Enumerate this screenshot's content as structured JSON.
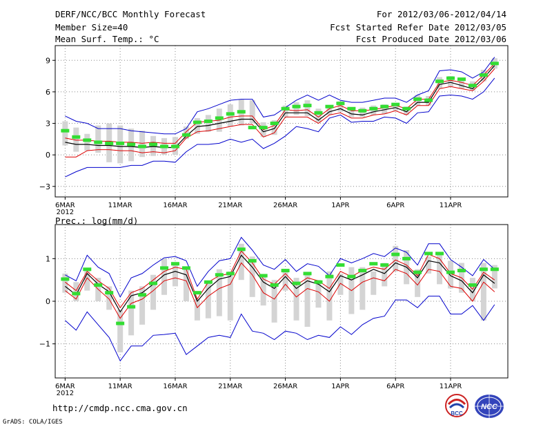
{
  "header": {
    "title": "DERF/NCC/BCC Monthly Forecast",
    "member_size": "Member Size=40",
    "variable": "Mean Surf. Temp.: °C",
    "period": "For 2012/03/06-2012/04/14",
    "started": "Fcst Started Refer Date 2012/03/05",
    "produced": "Fcst Produced Date 2012/03/06"
  },
  "footer": {
    "url": "http://cmdp.ncc.cma.gov.cn",
    "credit": "GrADS: COLA/IGES",
    "logo_left_text": "BCC",
    "logo_right_text": "NCC"
  },
  "colors": {
    "envelope": "#0000cc",
    "quartile": "#dd0000",
    "mean": "#000000",
    "observed": "#33dd33",
    "box": "#d4d4d4",
    "grid": "#888888"
  },
  "chart_data": [
    {
      "type": "line",
      "title": "Mean Surf. Temp.: °C",
      "x_tick_labels": [
        "6MAR\n2012",
        "11MAR",
        "16MAR",
        "21MAR",
        "26MAR",
        "1APR",
        "6APR",
        "11APR"
      ],
      "x_tick_days": [
        1,
        6,
        11,
        16,
        21,
        26,
        31,
        36
      ],
      "y_ticks": [
        -3,
        0,
        3,
        6,
        9
      ],
      "ylim": [
        -4.0,
        10.4
      ],
      "days": [
        1,
        2,
        3,
        4,
        5,
        6,
        7,
        8,
        9,
        10,
        11,
        12,
        13,
        14,
        15,
        16,
        17,
        18,
        19,
        20,
        21,
        22,
        23,
        24,
        25,
        26,
        27,
        28,
        29,
        30,
        31,
        32,
        33,
        34,
        35,
        36,
        37,
        38,
        39,
        40
      ],
      "series": [
        {
          "name": "max",
          "values": [
            3.7,
            3.2,
            3.0,
            2.5,
            2.5,
            2.5,
            2.3,
            2.2,
            2.1,
            2.0,
            2.0,
            2.5,
            4.1,
            4.4,
            4.8,
            5.2,
            5.3,
            5.3,
            3.6,
            3.8,
            4.5,
            5.2,
            5.7,
            5.2,
            5.7,
            5.2,
            5.0,
            5.0,
            5.2,
            5.4,
            5.4,
            5.0,
            5.7,
            6.1,
            8.0,
            8.1,
            7.9,
            7.3,
            7.9,
            9.3
          ]
        },
        {
          "name": "upper_quartile",
          "values": [
            1.6,
            1.4,
            1.4,
            1.3,
            1.3,
            1.2,
            1.2,
            1.1,
            1.2,
            1.1,
            1.1,
            2.2,
            3.1,
            3.2,
            3.3,
            3.6,
            3.7,
            3.7,
            2.4,
            2.8,
            4.3,
            4.2,
            4.3,
            3.6,
            4.4,
            4.7,
            4.2,
            4.2,
            4.3,
            4.5,
            4.7,
            4.4,
            5.3,
            5.3,
            6.9,
            7.1,
            6.9,
            6.6,
            7.6,
            8.7
          ]
        },
        {
          "name": "mean",
          "values": [
            1.2,
            1.0,
            1.0,
            0.9,
            0.9,
            0.8,
            0.8,
            0.7,
            0.8,
            0.7,
            0.7,
            1.8,
            2.7,
            2.8,
            3.0,
            3.2,
            3.4,
            3.4,
            2.2,
            2.5,
            4.0,
            4.0,
            4.0,
            3.3,
            4.1,
            4.4,
            3.9,
            3.8,
            4.1,
            4.3,
            4.5,
            4.1,
            5.0,
            5.0,
            6.7,
            6.9,
            6.6,
            6.3,
            7.3,
            8.5
          ]
        },
        {
          "name": "lower_quartile",
          "values": [
            -0.2,
            -0.2,
            0.4,
            0.5,
            0.5,
            0.4,
            0.4,
            0.2,
            0.3,
            0.2,
            0.4,
            1.6,
            2.2,
            2.3,
            2.5,
            2.7,
            2.9,
            2.9,
            1.7,
            2.1,
            3.6,
            3.6,
            3.6,
            3.0,
            3.8,
            4.0,
            3.5,
            3.5,
            3.8,
            3.9,
            4.2,
            3.8,
            4.7,
            4.7,
            6.3,
            6.5,
            6.3,
            6.1,
            7.0,
            8.2
          ]
        },
        {
          "name": "min",
          "values": [
            -2.1,
            -1.6,
            -1.2,
            -1.2,
            -1.2,
            -1.2,
            -1.0,
            -1.0,
            -0.6,
            -0.6,
            -0.7,
            0.3,
            1.0,
            1.0,
            1.1,
            1.5,
            1.2,
            1.5,
            0.6,
            1.1,
            1.8,
            2.7,
            2.5,
            2.2,
            3.5,
            3.8,
            3.1,
            3.2,
            3.2,
            3.6,
            3.5,
            3.0,
            4.0,
            4.1,
            5.6,
            5.7,
            5.6,
            5.3,
            6.0,
            7.3
          ]
        }
      ],
      "boxes": [
        [
          0.9,
          3.2
        ],
        [
          0.3,
          2.6
        ],
        [
          0.4,
          2.0
        ],
        [
          0.2,
          2.8
        ],
        [
          -0.7,
          3.0
        ],
        [
          -0.8,
          2.8
        ],
        [
          -0.6,
          2.5
        ],
        [
          -0.2,
          2.3
        ],
        [
          -0.1,
          1.8
        ],
        [
          0.0,
          1.6
        ],
        [
          0.0,
          1.7
        ],
        [
          1.5,
          2.7
        ],
        [
          2.0,
          3.5
        ],
        [
          2.2,
          3.8
        ],
        [
          2.2,
          4.4
        ],
        [
          2.7,
          4.8
        ],
        [
          2.8,
          5.3
        ],
        [
          3.0,
          5.2
        ],
        [
          1.7,
          3.1
        ],
        [
          1.9,
          3.3
        ],
        [
          3.6,
          4.7
        ],
        [
          3.8,
          5.0
        ],
        [
          3.7,
          5.2
        ],
        [
          3.1,
          4.4
        ],
        [
          3.8,
          4.7
        ],
        [
          4.1,
          5.1
        ],
        [
          3.6,
          4.5
        ],
        [
          3.6,
          4.5
        ],
        [
          3.8,
          4.7
        ],
        [
          3.9,
          4.8
        ],
        [
          4.2,
          4.9
        ],
        [
          3.8,
          4.6
        ],
        [
          4.7,
          5.7
        ],
        [
          4.7,
          5.6
        ],
        [
          6.3,
          7.4
        ],
        [
          6.5,
          7.5
        ],
        [
          6.3,
          7.2
        ],
        [
          6.1,
          7.0
        ],
        [
          7.0,
          8.1
        ],
        [
          8.2,
          9.2
        ]
      ],
      "observed": [
        2.3,
        1.7,
        1.4,
        1.2,
        1.1,
        1.1,
        1.0,
        0.8,
        1.0,
        0.8,
        0.8,
        1.9,
        3.1,
        3.2,
        3.5,
        3.9,
        4.1,
        2.6,
        2.6,
        3.0,
        4.4,
        4.6,
        4.7,
        4.0,
        4.6,
        4.9,
        4.4,
        4.2,
        4.4,
        4.6,
        4.8,
        4.4,
        5.3,
        5.2,
        7.0,
        7.3,
        7.2,
        6.6,
        7.6,
        8.7
      ]
    },
    {
      "type": "line",
      "title": "Prec.: log(mm/d)",
      "x_tick_labels": [
        "6MAR\n2012",
        "11MAR",
        "16MAR",
        "21MAR",
        "26MAR",
        "1APR",
        "6APR",
        "11APR"
      ],
      "x_tick_days": [
        1,
        6,
        11,
        16,
        21,
        26,
        31,
        36
      ],
      "y_ticks": [
        -1,
        0,
        1
      ],
      "ylim": [
        -1.8,
        1.8
      ],
      "days": [
        1,
        2,
        3,
        4,
        5,
        6,
        7,
        8,
        9,
        10,
        11,
        12,
        13,
        14,
        15,
        16,
        17,
        18,
        19,
        20,
        21,
        22,
        23,
        24,
        25,
        26,
        27,
        28,
        29,
        30,
        31,
        32,
        33,
        34,
        35,
        36,
        37,
        38,
        39,
        40
      ],
      "series": [
        {
          "name": "max",
          "values": [
            0.62,
            0.48,
            1.08,
            0.8,
            0.65,
            0.1,
            0.55,
            0.65,
            0.85,
            1.02,
            1.05,
            0.95,
            0.35,
            0.7,
            0.95,
            1.0,
            1.5,
            1.2,
            0.85,
            0.75,
            0.98,
            0.7,
            0.88,
            0.82,
            0.6,
            1.0,
            0.9,
            1.0,
            1.12,
            1.05,
            1.25,
            1.15,
            0.85,
            1.35,
            1.35,
            0.98,
            0.8,
            0.6,
            0.98,
            0.75
          ]
        },
        {
          "name": "upper_quartile",
          "values": [
            0.45,
            0.25,
            0.7,
            0.48,
            0.3,
            -0.15,
            0.2,
            0.3,
            0.5,
            0.7,
            0.8,
            0.75,
            0.05,
            0.45,
            0.6,
            0.65,
            1.18,
            0.9,
            0.52,
            0.4,
            0.65,
            0.38,
            0.55,
            0.48,
            0.3,
            0.7,
            0.58,
            0.72,
            0.8,
            0.75,
            0.97,
            0.85,
            0.6,
            1.1,
            1.0,
            0.65,
            0.55,
            0.28,
            0.68,
            0.5
          ]
        },
        {
          "name": "mean",
          "values": [
            0.35,
            0.15,
            0.65,
            0.4,
            0.22,
            -0.25,
            0.13,
            0.2,
            0.4,
            0.62,
            0.7,
            0.62,
            0.0,
            0.3,
            0.52,
            0.58,
            1.08,
            0.8,
            0.45,
            0.3,
            0.58,
            0.3,
            0.48,
            0.4,
            0.22,
            0.6,
            0.5,
            0.62,
            0.75,
            0.65,
            0.9,
            0.8,
            0.55,
            0.95,
            0.9,
            0.6,
            0.48,
            0.2,
            0.62,
            0.42
          ]
        },
        {
          "name": "lower_quartile",
          "values": [
            0.25,
            0.05,
            0.55,
            0.28,
            0.05,
            -0.4,
            -0.05,
            0.05,
            0.25,
            0.48,
            0.55,
            0.48,
            -0.15,
            0.12,
            0.3,
            0.4,
            0.9,
            0.62,
            0.2,
            0.05,
            0.4,
            0.1,
            0.3,
            0.22,
            0.0,
            0.42,
            0.25,
            0.45,
            0.55,
            0.48,
            0.75,
            0.65,
            0.38,
            0.75,
            0.7,
            0.35,
            0.3,
            0.0,
            0.45,
            0.22
          ]
        },
        {
          "name": "min",
          "values": [
            -0.45,
            -0.68,
            -0.25,
            -0.55,
            -0.85,
            -1.4,
            -1.05,
            -1.05,
            -0.8,
            -0.78,
            -0.75,
            -1.25,
            -1.05,
            -0.85,
            -0.8,
            -0.85,
            -0.3,
            -0.7,
            -0.75,
            -0.9,
            -0.7,
            -0.75,
            -0.9,
            -0.8,
            -0.85,
            -0.6,
            -0.78,
            -0.55,
            -0.4,
            -0.35,
            0.03,
            0.03,
            -0.15,
            0.12,
            0.12,
            -0.3,
            -0.3,
            -0.1,
            -0.45,
            -0.08
          ]
        }
      ],
      "boxes": [
        [
          0.2,
          0.65
        ],
        [
          0.0,
          0.45
        ],
        [
          0.25,
          0.75
        ],
        [
          0.0,
          0.55
        ],
        [
          -0.2,
          0.35
        ],
        [
          -1.2,
          -0.2
        ],
        [
          -0.8,
          0.25
        ],
        [
          -0.55,
          0.35
        ],
        [
          -0.2,
          0.62
        ],
        [
          0.15,
          1.0
        ],
        [
          0.35,
          0.85
        ],
        [
          0.0,
          0.8
        ],
        [
          -0.45,
          0.05
        ],
        [
          -0.4,
          0.45
        ],
        [
          -0.35,
          0.75
        ],
        [
          -0.45,
          0.7
        ],
        [
          0.5,
          1.35
        ],
        [
          0.1,
          1.05
        ],
        [
          -0.1,
          0.6
        ],
        [
          -0.5,
          0.5
        ],
        [
          0.25,
          0.7
        ],
        [
          -0.45,
          0.55
        ],
        [
          -0.6,
          0.65
        ],
        [
          -0.15,
          0.5
        ],
        [
          -0.45,
          0.7
        ],
        [
          0.15,
          0.65
        ],
        [
          -0.3,
          0.8
        ],
        [
          -0.2,
          0.8
        ],
        [
          0.15,
          0.7
        ],
        [
          0.35,
          0.9
        ],
        [
          0.7,
          1.3
        ],
        [
          0.4,
          1.2
        ],
        [
          0.1,
          0.75
        ],
        [
          0.65,
          1.05
        ],
        [
          0.4,
          1.1
        ],
        [
          0.3,
          0.95
        ],
        [
          0.2,
          0.9
        ],
        [
          0.0,
          0.55
        ],
        [
          -0.45,
          0.9
        ],
        [
          0.3,
          0.85
        ]
      ],
      "observed": [
        0.52,
        0.18,
        0.75,
        0.38,
        0.2,
        -0.52,
        -0.13,
        0.15,
        0.42,
        0.78,
        0.88,
        0.78,
        0.2,
        0.45,
        0.62,
        0.65,
        1.22,
        0.95,
        0.6,
        0.38,
        0.72,
        0.42,
        0.65,
        0.45,
        0.58,
        0.85,
        0.58,
        0.72,
        0.88,
        0.85,
        1.1,
        1.0,
        0.68,
        1.12,
        1.12,
        0.68,
        0.72,
        0.38,
        0.75,
        0.75
      ]
    }
  ]
}
